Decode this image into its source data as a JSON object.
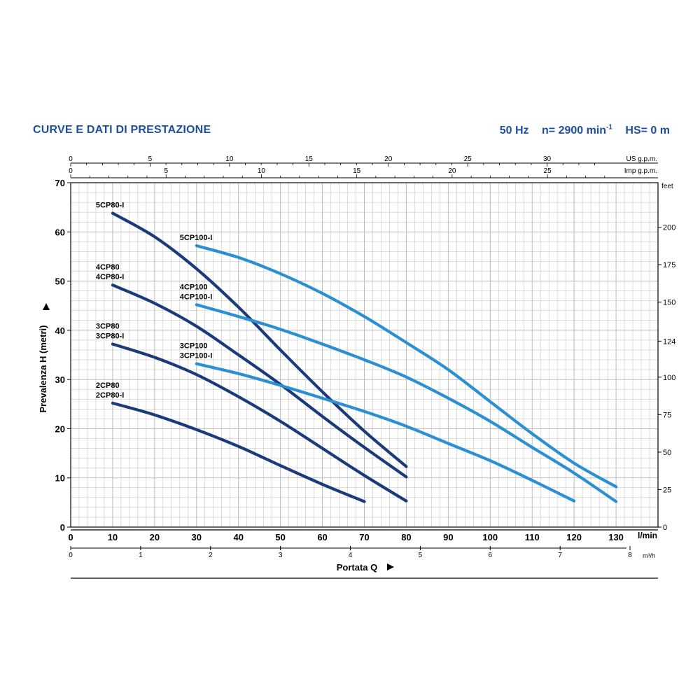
{
  "header": {
    "title": "CURVE E DATI DI PRESTAZIONE",
    "frequency": "50 Hz",
    "speed_label": "n= 2900 min",
    "speed_exp": "-1",
    "hs": "HS= 0 m"
  },
  "colors": {
    "grid": "#b5b5b5",
    "axis": "#000000",
    "cp80": "#1a3a7a",
    "cp100": "#2b8fd4",
    "title": "#1f4e9c"
  },
  "chart_data": {
    "type": "line",
    "title": "",
    "xlabel": "Portata Q",
    "ylabel": "Prevalenza H (metri)",
    "xlim": [
      0,
      140
    ],
    "ylim": [
      0,
      70
    ],
    "x_unit": "l/min",
    "y2_unit": "feet",
    "top_axis_1_unit": "US g.p.m.",
    "top_axis_2_unit": "Imp g.p.m.",
    "bottom_axis_2_unit": "m³/h",
    "x_ticks": [
      0,
      10,
      20,
      30,
      40,
      50,
      60,
      70,
      80,
      90,
      100,
      110,
      120,
      130
    ],
    "y_ticks": [
      0,
      10,
      20,
      30,
      40,
      50,
      60,
      70
    ],
    "feet_ticks": [
      0,
      25,
      50,
      75,
      100,
      124,
      150,
      175,
      200
    ],
    "usgpm_ticks": [
      0,
      5,
      10,
      15,
      20,
      25,
      30
    ],
    "impgpm_ticks": [
      0,
      5,
      10,
      15,
      20,
      25
    ],
    "m3h_ticks": [
      0,
      1,
      2,
      3,
      4,
      5,
      6,
      7,
      8
    ],
    "grid": true,
    "series": [
      {
        "name": "5CP80-I",
        "label_lines": [
          "5CP80-I"
        ],
        "family": "cp80",
        "x": [
          10,
          20,
          30,
          40,
          50,
          60,
          70,
          80
        ],
        "y": [
          63.8,
          59,
          52.5,
          44.7,
          36,
          27.5,
          19.5,
          12.3
        ]
      },
      {
        "name": "4CP80 / 4CP80-I",
        "label_lines": [
          "4CP80",
          "4CP80-I"
        ],
        "family": "cp80",
        "x": [
          10,
          20,
          30,
          40,
          50,
          60,
          70,
          80
        ],
        "y": [
          49.2,
          45.5,
          40.8,
          35,
          29,
          22.5,
          16.2,
          10.2
        ]
      },
      {
        "name": "3CP80 / 3CP80-I",
        "label_lines": [
          "3CP80",
          "3CP80-I"
        ],
        "family": "cp80",
        "x": [
          10,
          20,
          30,
          40,
          50,
          60,
          70,
          80
        ],
        "y": [
          37.2,
          34.5,
          31,
          26.5,
          21.5,
          16,
          10.5,
          5.3
        ]
      },
      {
        "name": "2CP80 / 2CP80-I",
        "label_lines": [
          "2CP80",
          "2CP80-I"
        ],
        "family": "cp80",
        "x": [
          10,
          20,
          30,
          40,
          50,
          60,
          70
        ],
        "y": [
          25.2,
          22.8,
          19.8,
          16.4,
          12.5,
          8.7,
          5.2
        ]
      },
      {
        "name": "5CP100-I",
        "label_lines": [
          "5CP100-I"
        ],
        "family": "cp100",
        "x": [
          30,
          40,
          50,
          60,
          70,
          80,
          90,
          100,
          110,
          120,
          130
        ],
        "y": [
          57.2,
          54.8,
          51.5,
          47.5,
          42.8,
          37.5,
          32,
          25.5,
          19,
          13,
          8.2
        ]
      },
      {
        "name": "4CP100 / 4CP100-I",
        "label_lines": [
          "4CP100",
          "4CP100-I"
        ],
        "family": "cp100",
        "x": [
          30,
          40,
          50,
          60,
          70,
          80,
          90,
          100,
          110,
          120,
          130
        ],
        "y": [
          45.2,
          42.8,
          40.2,
          37.2,
          34,
          30.5,
          26.2,
          21.5,
          16.2,
          11,
          5.2
        ]
      },
      {
        "name": "3CP100 / 3CP100-I",
        "label_lines": [
          "3CP100",
          "3CP100-I"
        ],
        "family": "cp100",
        "x": [
          30,
          40,
          50,
          60,
          70,
          80,
          90,
          100,
          110,
          120
        ],
        "y": [
          33.2,
          31.2,
          28.8,
          26.2,
          23.5,
          20.5,
          17,
          13.5,
          9.5,
          5.3
        ]
      }
    ]
  }
}
